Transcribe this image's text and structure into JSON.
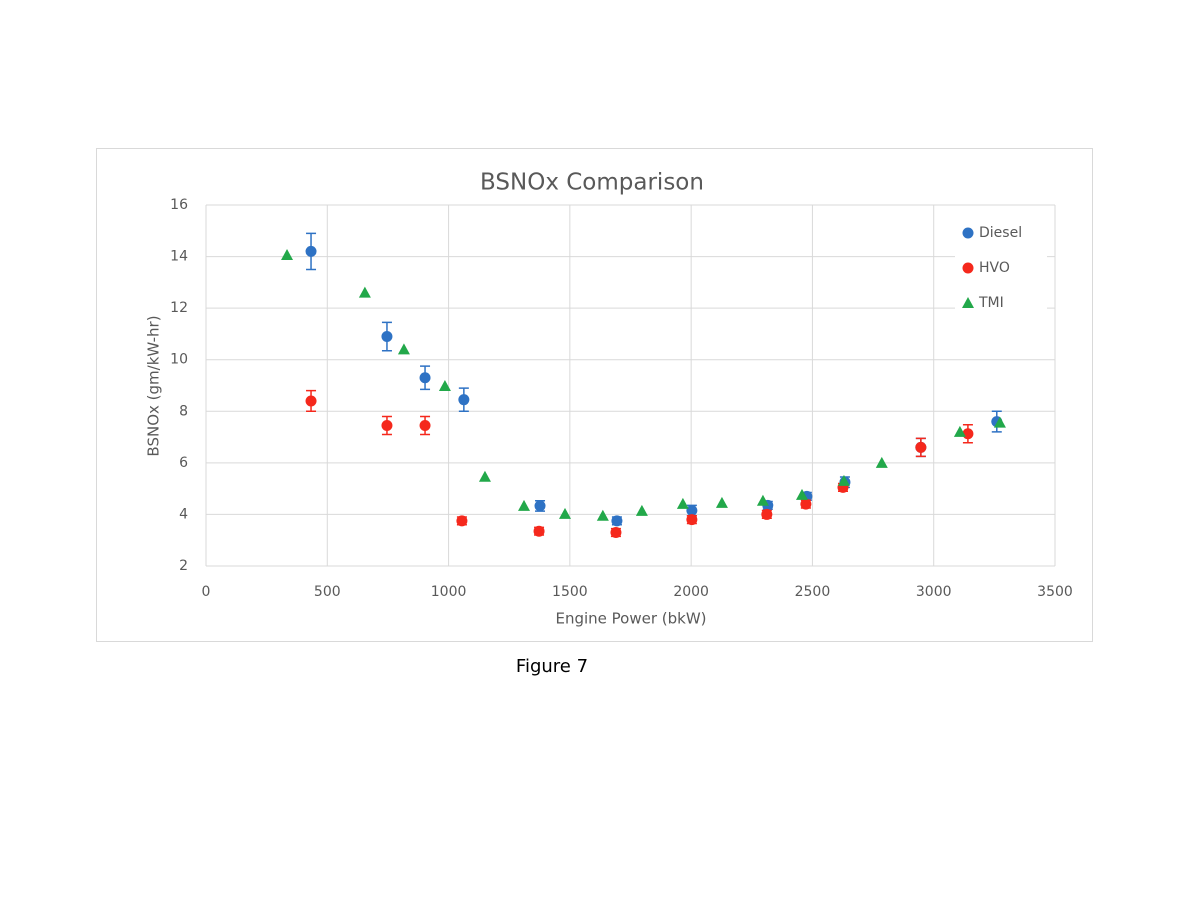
{
  "chart_data": {
    "type": "scatter",
    "title": "BSNOx Comparison",
    "x_label": "Engine Power (bkW)",
    "y_label": "BSNOx (gm/kW-hr)",
    "xlim": [
      0,
      3500
    ],
    "xticks": [
      0,
      500,
      1000,
      1500,
      2000,
      2500,
      3000,
      3500
    ],
    "ylim": [
      2,
      16
    ],
    "yticks": [
      2,
      4,
      6,
      8,
      10,
      12,
      14,
      16
    ],
    "grid": true,
    "legend": "upper right",
    "series": [
      {
        "name": "Diesel",
        "color": "#2e72c4",
        "marker": "circle",
        "x": [
          433,
          746,
          903,
          1063,
          1377,
          1694,
          2003,
          2316,
          2477,
          2634,
          2947,
          3260
        ],
        "values": [
          14.2,
          10.9,
          9.3,
          8.45,
          4.33,
          3.75,
          4.15,
          4.35,
          4.7,
          5.25,
          6.6,
          7.6
        ],
        "errors": [
          0.7,
          0.55,
          0.45,
          0.45,
          0.2,
          0.15,
          0.2,
          0.15,
          0.15,
          0.2,
          0.35,
          0.4
        ]
      },
      {
        "name": "HVO",
        "color": "#f5281c",
        "marker": "circle",
        "x": [
          433,
          746,
          903,
          1055,
          1373,
          1690,
          2003,
          2312,
          2473,
          2626,
          2947,
          3141
        ],
        "values": [
          8.4,
          7.45,
          7.45,
          3.75,
          3.35,
          3.3,
          3.8,
          4.0,
          4.4,
          5.05,
          6.6,
          7.13
        ],
        "errors": [
          0.4,
          0.35,
          0.35,
          0.15,
          0.15,
          0.15,
          0.15,
          0.15,
          0.15,
          0.15,
          0.35,
          0.35
        ]
      },
      {
        "name": "TMI",
        "color": "#22a84a",
        "marker": "triangle",
        "x": [
          334,
          655,
          816,
          985,
          1150,
          1311,
          1480,
          1636,
          1797,
          1966,
          2127,
          2296,
          2457,
          2630,
          2786,
          3108,
          3273
        ],
        "values": [
          14.06,
          12.6,
          10.4,
          8.98,
          5.46,
          4.33,
          4.02,
          3.95,
          4.14,
          4.41,
          4.45,
          4.53,
          4.76,
          5.3,
          6.0,
          7.2,
          7.56
        ]
      }
    ]
  },
  "figure_caption": "Figure 7"
}
